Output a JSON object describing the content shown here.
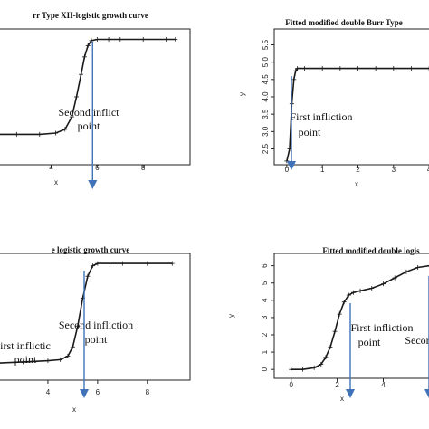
{
  "chart_data": [
    {
      "type": "line",
      "title": "rr Type XII-logistic growth curve",
      "xlabel": "x",
      "ylabel": "",
      "xticks": [
        "4",
        "6",
        "8"
      ],
      "yticks": [],
      "xlim": [
        1.7,
        9.8
      ],
      "ylim": [
        0,
        1
      ],
      "series": [
        {
          "x": [
            1.7,
            2.5,
            3.5,
            4.2,
            4.6,
            4.9,
            5.1,
            5.3,
            5.45,
            5.6,
            5.75,
            6.0,
            6.5,
            7.0,
            8.0,
            9.0,
            9.4
          ],
          "values": [
            0.2,
            0.2,
            0.2,
            0.21,
            0.24,
            0.34,
            0.5,
            0.68,
            0.82,
            0.91,
            0.95,
            0.96,
            0.96,
            0.96,
            0.96,
            0.96,
            0.96
          ]
        }
      ],
      "annotations": [
        {
          "text": [
            "Second inflict",
            "point"
          ],
          "x": 5.8
        }
      ]
    },
    {
      "type": "line",
      "title": "Fitted modified double Burr Type",
      "xlabel": "x",
      "ylabel": "y",
      "xticks": [
        "0",
        "1",
        "2",
        "3",
        "4"
      ],
      "yticks": [
        "2.5",
        "3.0",
        "3.5",
        "4.0",
        "4.5",
        "5.0",
        "5.5"
      ],
      "xlim": [
        -0.2,
        4.2
      ],
      "ylim": [
        2.2,
        5.8
      ],
      "series": [
        {
          "x": [
            0.0,
            0.08,
            0.14,
            0.2,
            0.25,
            0.3,
            0.5,
            1.0,
            1.5,
            2.0,
            2.5,
            3.0,
            3.5,
            4.0,
            4.2
          ],
          "values": [
            2.15,
            2.5,
            3.8,
            4.5,
            4.75,
            4.82,
            4.82,
            4.82,
            4.82,
            4.82,
            4.82,
            4.82,
            4.82,
            4.82,
            4.82
          ]
        }
      ],
      "annotations": [
        {
          "text": [
            "First infliction",
            "point"
          ],
          "x": 0.3
        }
      ]
    },
    {
      "type": "line",
      "title": "e logistic growth curve",
      "xlabel": "x",
      "ylabel": "",
      "xticks": [
        "4",
        "6",
        "8"
      ],
      "yticks": [],
      "xlim": [
        2.0,
        9.5
      ],
      "ylim": [
        0,
        1
      ],
      "series": [
        {
          "x": [
            2.0,
            3.0,
            4.0,
            4.5,
            4.8,
            5.0,
            5.2,
            5.4,
            5.6,
            5.8,
            6.0,
            6.5,
            7.0,
            8.0,
            9.0
          ],
          "values": [
            0.1,
            0.11,
            0.12,
            0.13,
            0.16,
            0.24,
            0.42,
            0.66,
            0.85,
            0.94,
            0.96,
            0.96,
            0.96,
            0.96,
            0.96
          ]
        }
      ],
      "annotations": [
        {
          "text": [
            "Second infliction",
            "point"
          ],
          "x": 5.7
        },
        {
          "text": [
            "irst inflictic",
            "point"
          ],
          "x": 2.1
        }
      ]
    },
    {
      "type": "line",
      "title": "Fitted modified double logis",
      "xlabel": "x",
      "ylabel": "y",
      "xticks": [
        "0",
        "2",
        "4"
      ],
      "yticks": [
        "0",
        "1",
        "2",
        "3",
        "4",
        "5",
        "6"
      ],
      "xlim": [
        -0.5,
        6.3
      ],
      "ylim": [
        -0.2,
        6.4
      ],
      "series": [
        {
          "x": [
            0.0,
            0.5,
            1.0,
            1.3,
            1.5,
            1.7,
            1.9,
            2.1,
            2.3,
            2.5,
            2.7,
            3.0,
            3.5,
            4.0,
            4.5,
            5.0,
            5.5,
            6.0
          ],
          "values": [
            0.0,
            0.0,
            0.1,
            0.3,
            0.7,
            1.3,
            2.2,
            3.2,
            3.9,
            4.3,
            4.45,
            4.55,
            4.7,
            4.95,
            5.3,
            5.65,
            5.9,
            6.0
          ]
        }
      ],
      "annotations": [
        {
          "text": [
            "First infliction",
            "point"
          ],
          "x": 2.6
        },
        {
          "text": [
            "Secon"
          ],
          "x": 5.95
        }
      ]
    }
  ]
}
